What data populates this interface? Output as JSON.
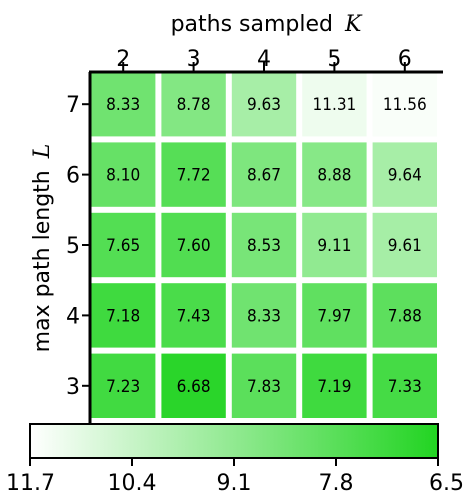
{
  "chart_data": {
    "type": "heatmap",
    "xlabel": "paths sampled",
    "xlabel_symbol": "K",
    "ylabel": "max path length",
    "ylabel_symbol": "L",
    "x_categories": [
      "2",
      "3",
      "4",
      "5",
      "6"
    ],
    "y_categories": [
      "7",
      "6",
      "5",
      "4",
      "3"
    ],
    "values": [
      [
        8.33,
        8.78,
        9.63,
        11.31,
        11.56
      ],
      [
        8.1,
        7.72,
        8.67,
        8.88,
        9.64
      ],
      [
        7.65,
        7.6,
        8.53,
        9.11,
        9.61
      ],
      [
        7.18,
        7.43,
        8.33,
        7.97,
        7.88
      ],
      [
        7.23,
        6.68,
        7.83,
        7.19,
        7.33
      ]
    ],
    "cell_labels": [
      [
        "8.33",
        "8.78",
        "9.63",
        "11.31",
        "11.56"
      ],
      [
        "8.10",
        "7.72",
        "8.67",
        "8.88",
        "9.64"
      ],
      [
        "7.65",
        "7.60",
        "8.53",
        "9.11",
        "9.61"
      ],
      [
        "7.18",
        "7.43",
        "8.33",
        "7.97",
        "7.88"
      ],
      [
        "7.23",
        "6.68",
        "7.83",
        "7.19",
        "7.33"
      ]
    ],
    "colorbar": {
      "orientation": "horizontal",
      "range": [
        11.7,
        6.5
      ],
      "ticks": [
        "11.7",
        "10.4",
        "9.1",
        "7.8",
        "6.5"
      ],
      "color_low_value": "#ffffff",
      "color_high_value": "#22d422"
    },
    "colors": {
      "cell_max": "#22d422",
      "cell_min": "#ffffff",
      "gap": "#ffffff"
    },
    "x_axis_position": "top",
    "grid": false
  }
}
